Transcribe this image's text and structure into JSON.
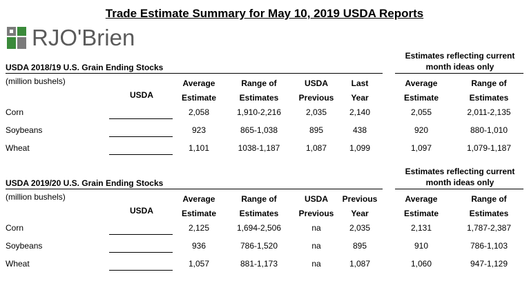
{
  "title": "Trade Estimate Summary for May 10, 2019 USDA Reports",
  "logo": {
    "text": "RJO'Brien",
    "colors": {
      "green": "#3a8a3a",
      "gray": "#7a7a7a",
      "text": "#5a5a5a"
    }
  },
  "sections": [
    {
      "title": "USDA 2018/19 U.S. Grain Ending Stocks",
      "unit": "(million bushels)",
      "estimates_note": [
        "Estimates reflecting current",
        "month ideas only"
      ],
      "headers": {
        "usda": "USDA",
        "avg": [
          "Average",
          "Estimate"
        ],
        "range": [
          "Range of",
          "Estimates"
        ],
        "prev": [
          "USDA",
          "Previous"
        ],
        "last": [
          "Last",
          "Year"
        ],
        "cur_avg": [
          "Average",
          "Estimate"
        ],
        "cur_range": [
          "Range of",
          "Estimates"
        ]
      },
      "rows": [
        {
          "label": "Corn",
          "avg": "2,058",
          "range": "1,910-2,216",
          "prev": "2,035",
          "last": "2,140",
          "cur_avg": "2,055",
          "cur_range": "2,011-2,135"
        },
        {
          "label": "Soybeans",
          "avg": "923",
          "range": "865-1,038",
          "prev": "895",
          "last": "438",
          "cur_avg": "920",
          "cur_range": "880-1,010"
        },
        {
          "label": "Wheat",
          "avg": "1,101",
          "range": "1038-1,187",
          "prev": "1,087",
          "last": "1,099",
          "cur_avg": "1,097",
          "cur_range": "1,079-1,187"
        }
      ]
    },
    {
      "title": "USDA 2019/20 U.S. Grain Ending Stocks",
      "unit": "(million bushels)",
      "estimates_note": [
        "Estimates reflecting current",
        "month ideas only"
      ],
      "headers": {
        "usda": "USDA",
        "avg": [
          "Average",
          "Estimate"
        ],
        "range": [
          "Range of",
          "Estimates"
        ],
        "prev": [
          "USDA",
          "Previous"
        ],
        "last": [
          "Previous",
          "Year"
        ],
        "cur_avg": [
          "Average",
          "Estimate"
        ],
        "cur_range": [
          "Range of",
          "Estimates"
        ]
      },
      "rows": [
        {
          "label": "Corn",
          "avg": "2,125",
          "range": "1,694-2,506",
          "prev": "na",
          "last": "2,035",
          "cur_avg": "2,131",
          "cur_range": "1,787-2,387"
        },
        {
          "label": "Soybeans",
          "avg": "936",
          "range": "786-1,520",
          "prev": "na",
          "last": "895",
          "cur_avg": "910",
          "cur_range": "786-1,103"
        },
        {
          "label": "Wheat",
          "avg": "1,057",
          "range": "881-1,173",
          "prev": "na",
          "last": "1,087",
          "cur_avg": "1,060",
          "cur_range": "947-1,129"
        }
      ]
    }
  ]
}
